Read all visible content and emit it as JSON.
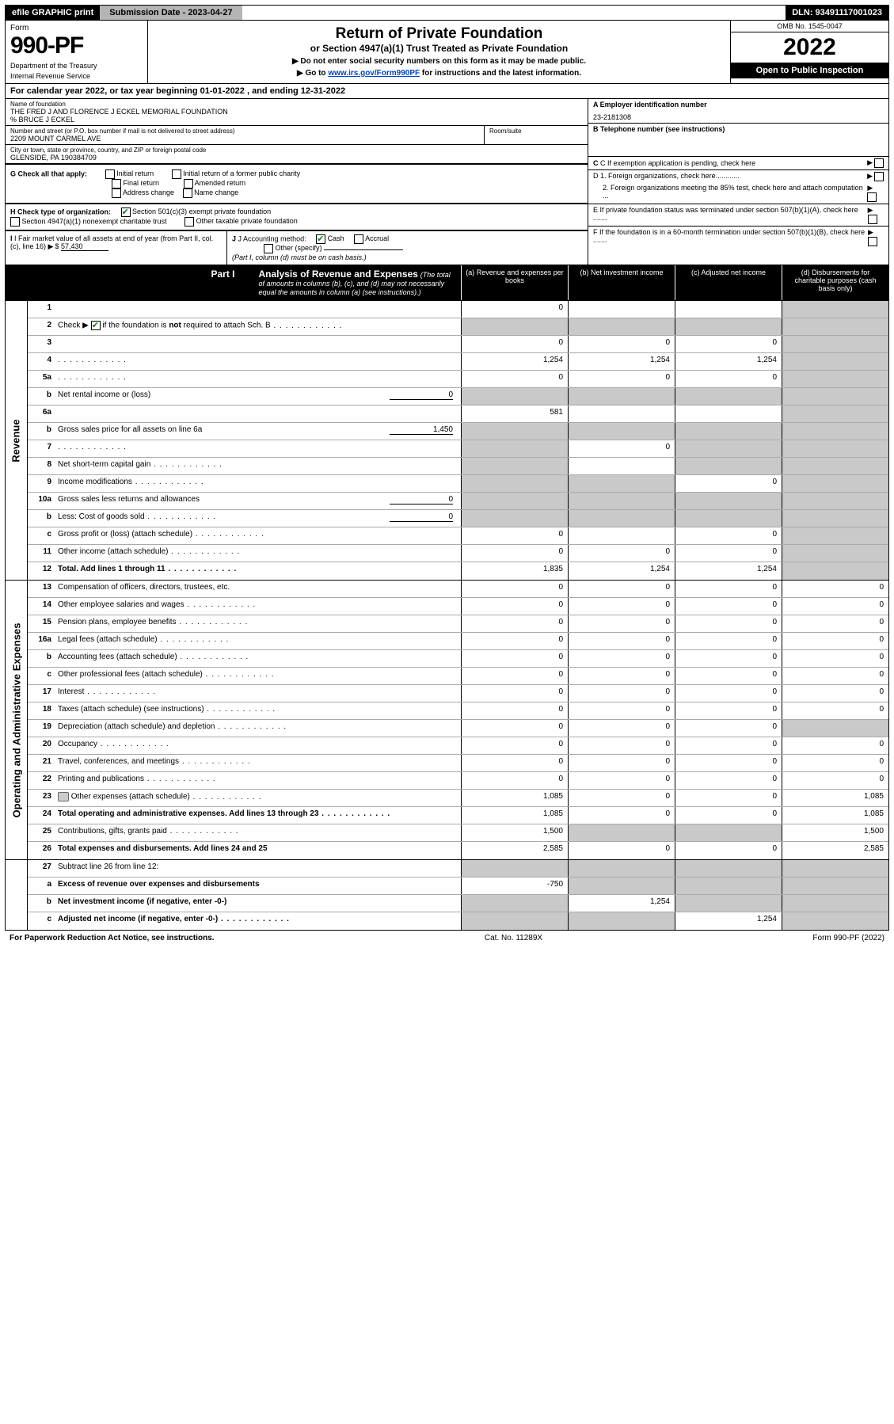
{
  "topbar": {
    "efile": "efile GRAPHIC print",
    "submission": "Submission Date - 2023-04-27",
    "dln": "DLN: 93491117001023"
  },
  "header": {
    "form_label": "Form",
    "form_number": "990-PF",
    "dept1": "Department of the Treasury",
    "dept2": "Internal Revenue Service",
    "title": "Return of Private Foundation",
    "sub": "or Section 4947(a)(1) Trust Treated as Private Foundation",
    "instr1": "▶ Do not enter social security numbers on this form as it may be made public.",
    "instr2_pre": "▶ Go to ",
    "instr2_link": "www.irs.gov/Form990PF",
    "instr2_post": " for instructions and the latest information.",
    "omb": "OMB No. 1545-0047",
    "year": "2022",
    "open": "Open to Public Inspection"
  },
  "cal": "For calendar year 2022, or tax year beginning 01-01-2022                         , and ending 12-31-2022",
  "ident": {
    "name_label": "Name of foundation",
    "name": "THE FRED J AND FLORENCE J ECKEL MEMORIAL FOUNDATION",
    "care_of": "% Bruce J Eckel",
    "addr_label": "Number and street (or P.O. box number if mail is not delivered to street address)",
    "addr": "2209 MOUNT CARMEL AVE",
    "room_label": "Room/suite",
    "city_label": "City or town, state or province, country, and ZIP or foreign postal code",
    "city": "GLENSIDE, PA  190384709",
    "ein_label": "A Employer identification number",
    "ein": "23-2181308",
    "tel_label": "B Telephone number (see instructions)",
    "c_label": "C If exemption application is pending, check here",
    "d1": "D 1. Foreign organizations, check here............",
    "d2": "2. Foreign organizations meeting the 85% test, check here and attach computation ...",
    "e": "E  If private foundation status was terminated under section 507(b)(1)(A), check here .......",
    "f": "F  If the foundation is in a 60-month termination under section 507(b)(1)(B), check here .......",
    "g_label": "G Check all that apply:",
    "g_opts": [
      "Initial return",
      "Final return",
      "Address change",
      "Initial return of a former public charity",
      "Amended return",
      "Name change"
    ],
    "h_label": "H Check type of organization:",
    "h_opt1": "Section 501(c)(3) exempt private foundation",
    "h_opt2": "Section 4947(a)(1) nonexempt charitable trust",
    "h_opt3": "Other taxable private foundation",
    "i_label": "I Fair market value of all assets at end of year (from Part II, col. (c), line 16)",
    "i_val": "57,430",
    "j_label": "J Accounting method:",
    "j_cash": "Cash",
    "j_accrual": "Accrual",
    "j_other": "Other (specify)",
    "j_note": "(Part I, column (d) must be on cash basis.)"
  },
  "part1": {
    "label": "Part I",
    "title": "Analysis of Revenue and Expenses",
    "sub": "(The total of amounts in columns (b), (c), and (d) may not necessarily equal the amounts in column (a) (see instructions).)",
    "col_a": "(a)   Revenue and expenses per books",
    "col_b": "(b)   Net investment income",
    "col_c": "(c)   Adjusted net income",
    "col_d": "(d)  Disbursements for charitable purposes (cash basis only)"
  },
  "side_labels": {
    "rev": "Revenue",
    "exp": "Operating and Administrative Expenses"
  },
  "rows": {
    "1": {
      "n": "1",
      "d": "",
      "a": "0",
      "b": "",
      "c": ""
    },
    "2": {
      "n": "2",
      "d": "Check ▶     if the foundation is not required to attach Sch. B",
      "chk": true,
      "dots": true
    },
    "3": {
      "n": "3",
      "d": "",
      "a": "0",
      "b": "0",
      "c": "0"
    },
    "4": {
      "n": "4",
      "d": "",
      "dots": true,
      "a": "1,254",
      "b": "1,254",
      "c": "1,254"
    },
    "5a": {
      "n": "5a",
      "d": "",
      "dots": true,
      "a": "0",
      "b": "0",
      "c": "0"
    },
    "5b": {
      "n": "b",
      "d": "Net rental income or (loss)",
      "sub": "0"
    },
    "6a": {
      "n": "6a",
      "d": "",
      "a": "581",
      "b": "",
      "c": ""
    },
    "6b": {
      "n": "b",
      "d": "Gross sales price for all assets on line 6a",
      "sub": "1,450"
    },
    "7": {
      "n": "7",
      "d": "",
      "dots": true,
      "a": "",
      "b": "0",
      "c": ""
    },
    "8": {
      "n": "8",
      "d": "Net short-term capital gain",
      "dots": true
    },
    "9": {
      "n": "9",
      "d": "Income modifications",
      "dots": true,
      "c": "0"
    },
    "10a": {
      "n": "10a",
      "d": "Gross sales less returns and allowances",
      "sub": "0"
    },
    "10b": {
      "n": "b",
      "d": "Less: Cost of goods sold",
      "dots": true,
      "sub": "0"
    },
    "10c": {
      "n": "c",
      "d": "Gross profit or (loss) (attach schedule)",
      "dots": true,
      "a": "0",
      "c": "0"
    },
    "11": {
      "n": "11",
      "d": "Other income (attach schedule)",
      "dots": true,
      "a": "0",
      "b": "0",
      "c": "0"
    },
    "12": {
      "n": "12",
      "d": "Total. Add lines 1 through 11",
      "dots": true,
      "bold": true,
      "a": "1,835",
      "b": "1,254",
      "c": "1,254"
    },
    "13": {
      "n": "13",
      "d": "Compensation of officers, directors, trustees, etc.",
      "a": "0",
      "b": "0",
      "c": "0",
      "dd": "0"
    },
    "14": {
      "n": "14",
      "d": "Other employee salaries and wages",
      "dots": true,
      "a": "0",
      "b": "0",
      "c": "0",
      "dd": "0"
    },
    "15": {
      "n": "15",
      "d": "Pension plans, employee benefits",
      "dots": true,
      "a": "0",
      "b": "0",
      "c": "0",
      "dd": "0"
    },
    "16a": {
      "n": "16a",
      "d": "Legal fees (attach schedule)",
      "dots": true,
      "a": "0",
      "b": "0",
      "c": "0",
      "dd": "0"
    },
    "16b": {
      "n": "b",
      "d": "Accounting fees (attach schedule)",
      "dots": true,
      "a": "0",
      "b": "0",
      "c": "0",
      "dd": "0"
    },
    "16c": {
      "n": "c",
      "d": "Other professional fees (attach schedule)",
      "dots": true,
      "a": "0",
      "b": "0",
      "c": "0",
      "dd": "0"
    },
    "17": {
      "n": "17",
      "d": "Interest",
      "dots": true,
      "a": "0",
      "b": "0",
      "c": "0",
      "dd": "0"
    },
    "18": {
      "n": "18",
      "d": "Taxes (attach schedule) (see instructions)",
      "dots": true,
      "a": "0",
      "b": "0",
      "c": "0",
      "dd": "0"
    },
    "19": {
      "n": "19",
      "d": "Depreciation (attach schedule) and depletion",
      "dots": true,
      "a": "0",
      "b": "0",
      "c": "0",
      "dd": ""
    },
    "20": {
      "n": "20",
      "d": "Occupancy",
      "dots": true,
      "a": "0",
      "b": "0",
      "c": "0",
      "dd": "0"
    },
    "21": {
      "n": "21",
      "d": "Travel, conferences, and meetings",
      "dots": true,
      "a": "0",
      "b": "0",
      "c": "0",
      "dd": "0"
    },
    "22": {
      "n": "22",
      "d": "Printing and publications",
      "dots": true,
      "a": "0",
      "b": "0",
      "c": "0",
      "dd": "0"
    },
    "23": {
      "n": "23",
      "d": "Other expenses (attach schedule)",
      "dots": true,
      "attach": true,
      "a": "1,085",
      "b": "0",
      "c": "0",
      "dd": "1,085"
    },
    "24": {
      "n": "24",
      "d": "Total operating and administrative expenses. Add lines 13 through 23",
      "dots": true,
      "bold": true,
      "a": "1,085",
      "b": "0",
      "c": "0",
      "dd": "1,085"
    },
    "25": {
      "n": "25",
      "d": "Contributions, gifts, grants paid",
      "dots": true,
      "a": "1,500",
      "dd": "1,500"
    },
    "26": {
      "n": "26",
      "d": "Total expenses and disbursements. Add lines 24 and 25",
      "bold": true,
      "a": "2,585",
      "b": "0",
      "c": "0",
      "dd": "2,585"
    },
    "27": {
      "n": "27",
      "d": "Subtract line 26 from line 12:"
    },
    "27a": {
      "n": "a",
      "d": "Excess of revenue over expenses and disbursements",
      "bold": true,
      "a": "-750"
    },
    "27b": {
      "n": "b",
      "d": "Net investment income (if negative, enter -0-)",
      "bold": true,
      "b": "1,254"
    },
    "27c": {
      "n": "c",
      "d": "Adjusted net income (if negative, enter -0-)",
      "bold": true,
      "dots": true,
      "c": "1,254"
    }
  },
  "footer": {
    "left": "For Paperwork Reduction Act Notice, see instructions.",
    "mid": "Cat. No. 11289X",
    "right": "Form 990-PF (2022)"
  },
  "colors": {
    "link": "#0044cc",
    "check_green": "#0a7a2a",
    "grey_cell": "#c9c9c9",
    "topbar_grey": "#b5b5b5"
  }
}
